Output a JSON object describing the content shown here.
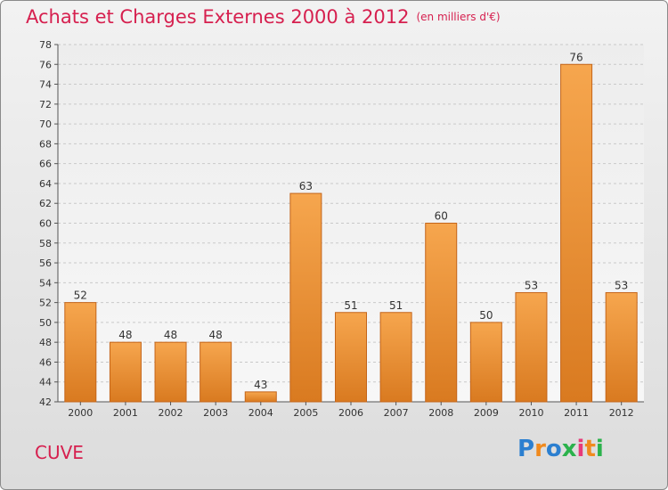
{
  "header": {
    "title": "Achats et Charges Externes 2000 à 2012",
    "unit": "(en milliers d'€)"
  },
  "footer": {
    "commune": "CUVE",
    "logo": {
      "text": "Proxiti",
      "letters": [
        {
          "ch": "P",
          "color": "#2b7fd0"
        },
        {
          "ch": "r",
          "color": "#f08a1e"
        },
        {
          "ch": "o",
          "color": "#2b7fd0"
        },
        {
          "ch": "x",
          "color": "#2bb24c"
        },
        {
          "ch": "i",
          "color": "#e83a7a"
        },
        {
          "ch": "t",
          "color": "#f08a1e"
        },
        {
          "ch": "i",
          "color": "#2bb24c"
        }
      ]
    }
  },
  "colors": {
    "bar_light": "#f6a64e",
    "bar_dark": "#d97a20",
    "bar_edge": "#c4651a",
    "title": "#d6204f"
  },
  "chart_data": {
    "type": "bar",
    "categories": [
      "2000",
      "2001",
      "2002",
      "2003",
      "2004",
      "2005",
      "2006",
      "2007",
      "2008",
      "2009",
      "2010",
      "2011",
      "2012"
    ],
    "values": [
      52,
      48,
      48,
      48,
      43,
      63,
      51,
      51,
      60,
      50,
      53,
      76,
      53
    ],
    "ylim": [
      42,
      78
    ],
    "yticks": [
      42,
      44,
      46,
      48,
      50,
      52,
      54,
      56,
      58,
      60,
      62,
      64,
      66,
      68,
      70,
      72,
      74,
      76,
      78
    ],
    "grid": true
  }
}
